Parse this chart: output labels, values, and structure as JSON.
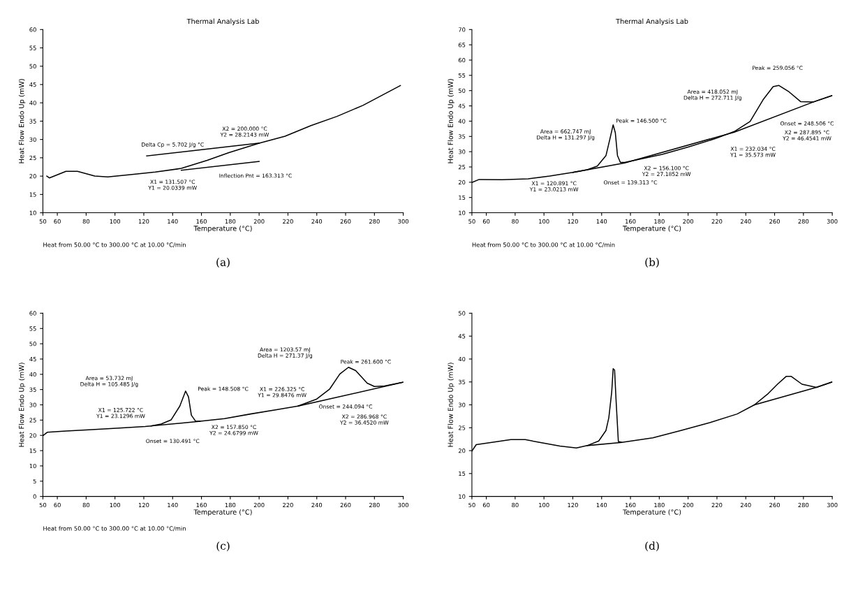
{
  "chart_data": [
    {
      "type": "line",
      "title": "Thermal Analysis Lab",
      "xlabel": "Temperature (°C)",
      "ylabel": "Heat Flow Endo Up (mW)",
      "xlim": [
        50,
        300
      ],
      "xticks": [
        50,
        60,
        80,
        100,
        120,
        140,
        160,
        180,
        200,
        220,
        240,
        260,
        280,
        300
      ],
      "ylim": [
        10,
        60
      ],
      "yticks": [
        10,
        15,
        20,
        25,
        30,
        35,
        40,
        45,
        50,
        55,
        60
      ],
      "grid": false,
      "series": [
        {
          "color": "#000000",
          "x": [
            52.7,
            54.5,
            66,
            74,
            86,
            95,
            113,
            128,
            146,
            164,
            179,
            200,
            218,
            236,
            254,
            272,
            298
          ],
          "values": [
            20.0,
            19.5,
            21.3,
            21.3,
            20.0,
            19.8,
            20.5,
            21.1,
            22.1,
            24.3,
            26.4,
            29.0,
            30.9,
            33.8,
            36.3,
            39.3,
            44.7
          ]
        },
        {
          "color": "#000000",
          "x": [
            122,
            200
          ],
          "values": [
            25.5,
            29.0
          ]
        },
        {
          "color": "#000000",
          "x": [
            146,
            200
          ],
          "values": [
            21.6,
            24.0
          ]
        }
      ],
      "annotations": [
        "X2 = 200.000 °C\nY2 = 28.2143 mW",
        "Delta Cp = 5.702 J/g °C",
        "Inflection Pnt = 163.313 °C",
        "X1 = 131.507 °C\nY1 = 20.0339 mW",
        "Heat from 50.00 °C to 300.00 °C at 10.00 °C/min",
        "(a)"
      ]
    },
    {
      "type": "line",
      "title": "Thermal Analysis Lab",
      "xlabel": "Temperature (°C)",
      "ylabel": "Heat Flow Endo Up (mW)",
      "xlim": [
        50,
        300
      ],
      "xticks": [
        50,
        60,
        80,
        100,
        120,
        140,
        160,
        180,
        200,
        220,
        240,
        260,
        280,
        300
      ],
      "ylim": [
        10,
        70
      ],
      "yticks": [
        10,
        15,
        20,
        25,
        30,
        35,
        40,
        45,
        50,
        55,
        60,
        65,
        70
      ],
      "grid": false,
      "series": [
        {
          "color": "#000000",
          "x": [
            50,
            55,
            71,
            89,
            104,
            120,
            130,
            137,
            143,
            146,
            148,
            149.5,
            151,
            153,
            156,
            182,
            200,
            219,
            232,
            243,
            252,
            259,
            263,
            270,
            278,
            287,
            300
          ],
          "values": [
            19.9,
            20.9,
            20.8,
            21.1,
            22.0,
            23.2,
            24.1,
            25.3,
            28.7,
            34.7,
            38.8,
            36.2,
            28.7,
            26.5,
            26.5,
            29.1,
            31.5,
            34.3,
            36.6,
            39.9,
            47.0,
            51.3,
            51.7,
            49.6,
            46.4,
            46.3,
            48.4
          ]
        },
        {
          "color": "#000000",
          "x": [
            120,
            156,
            232,
            287,
            300
          ],
          "values": [
            23.2,
            26.3,
            36.4,
            46.3,
            48.4
          ]
        }
      ],
      "annotations": [
        "Area = 662.747 mJ\nDelta H = 131.297 J/g",
        "Peak = 146.500 °C",
        "X1 = 120.891 °C\nY1 = 23.0213 mW",
        "X2 = 156.100 °C\nY2 = 27.1852 mW",
        "Onset = 139.313 °C",
        "Area = 418.052 mJ\nDelta H = 272.711 J/g",
        "Peak = 259.056 °C",
        "X1 = 232.034 °C\nY1 = 35.573 mW",
        "X2 = 287.895 °C\nY2 = 46.4541 mW",
        "Onset = 248.506 °C",
        "Heat from 50.00 °C to 300.00 °C at 10.00 °C/min",
        "(b)"
      ]
    },
    {
      "type": "line",
      "xlabel": "Temperature (°C)",
      "ylabel": "Heat Flow Endo Up (mW)",
      "xlim": [
        50,
        300
      ],
      "xticks": [
        50,
        60,
        80,
        100,
        120,
        140,
        160,
        180,
        200,
        220,
        240,
        260,
        280,
        300
      ],
      "ylim": [
        0,
        60
      ],
      "yticks": [
        0,
        5,
        10,
        15,
        20,
        25,
        30,
        35,
        40,
        45,
        50,
        55,
        60
      ],
      "grid": false,
      "series": [
        {
          "color": "#000000",
          "x": [
            50,
            53,
            66,
            84,
            103,
            121,
            125,
            132,
            139,
            145,
            149,
            151,
            153,
            156,
            159,
            176,
            194,
            212,
            227,
            240,
            249,
            256,
            262,
            267,
            275,
            280,
            287,
            300
          ],
          "values": [
            19.9,
            21.0,
            21.4,
            21.9,
            22.4,
            22.9,
            23.1,
            23.7,
            25.1,
            29.6,
            34.5,
            32.6,
            26.6,
            24.6,
            24.6,
            25.5,
            27.0,
            28.4,
            29.6,
            31.9,
            35.2,
            40.1,
            42.3,
            41.2,
            37.1,
            36.0,
            36.2,
            37.4
          ]
        },
        {
          "color": "#000000",
          "x": [
            125,
            159
          ],
          "values": [
            23.1,
            24.6
          ]
        },
        {
          "color": "#000000",
          "x": [
            227,
            300
          ],
          "values": [
            29.6,
            37.4
          ]
        }
      ],
      "annotations": [
        "Area = 53.732 mJ\nDelta H = 105.485 J/g",
        "X1 = 125.722 °C\nY1 = 23.1296 mW",
        "Peak = 148.508 °C",
        "Onset = 130.491 °C",
        "X2 = 157.850 °C\nY2 = 24.6799 mW",
        "Area = 1203.57 mJ\nDelta H = 271.37 J/g",
        "X1 = 226.325 °C\nY1 = 29.8476 mW",
        "Onset = 244.094 °C",
        "Peak = 261.600 °C",
        "X2 = 286.968 °C\nY2 = 36.4520 mW",
        "Heat from 50.00 °C to 300.00 °C at 10.00 °C/min",
        "(c)"
      ]
    },
    {
      "type": "line",
      "xlabel": "Temperature (°C)",
      "ylabel": "Heat Flow Endo Up (mW)",
      "xlim": [
        50,
        300
      ],
      "xticks": [
        50,
        60,
        80,
        100,
        120,
        140,
        160,
        180,
        200,
        220,
        240,
        260,
        280,
        300
      ],
      "ylim": [
        10,
        50
      ],
      "yticks": [
        10,
        15,
        20,
        25,
        30,
        35,
        40,
        45,
        50
      ],
      "grid": false,
      "series": [
        {
          "color": "#000000",
          "x": [
            50,
            53,
            68,
            77,
            87,
            97,
            111,
            122.5,
            130,
            138,
            143,
            145,
            147,
            148,
            149,
            150,
            151.6,
            154,
            175.5,
            195,
            215,
            234,
            246,
            255,
            262,
            268,
            271.6,
            279,
            289,
            300
          ],
          "values": [
            19.9,
            21.3,
            22.0,
            22.4,
            22.4,
            21.8,
            21.0,
            20.6,
            21.1,
            22.1,
            24.4,
            27.2,
            32.8,
            37.9,
            37.6,
            31.1,
            22.0,
            21.8,
            22.8,
            24.4,
            26.1,
            28.0,
            30.0,
            32.3,
            34.5,
            36.2,
            36.2,
            34.5,
            33.8,
            35.0
          ]
        },
        {
          "color": "#000000",
          "x": [
            130,
            154
          ],
          "values": [
            21.1,
            21.8
          ]
        },
        {
          "color": "#000000",
          "x": [
            246,
            289,
            300
          ],
          "values": [
            30.0,
            33.8,
            35.0
          ]
        }
      ],
      "annotations": [
        "(d)"
      ]
    }
  ]
}
